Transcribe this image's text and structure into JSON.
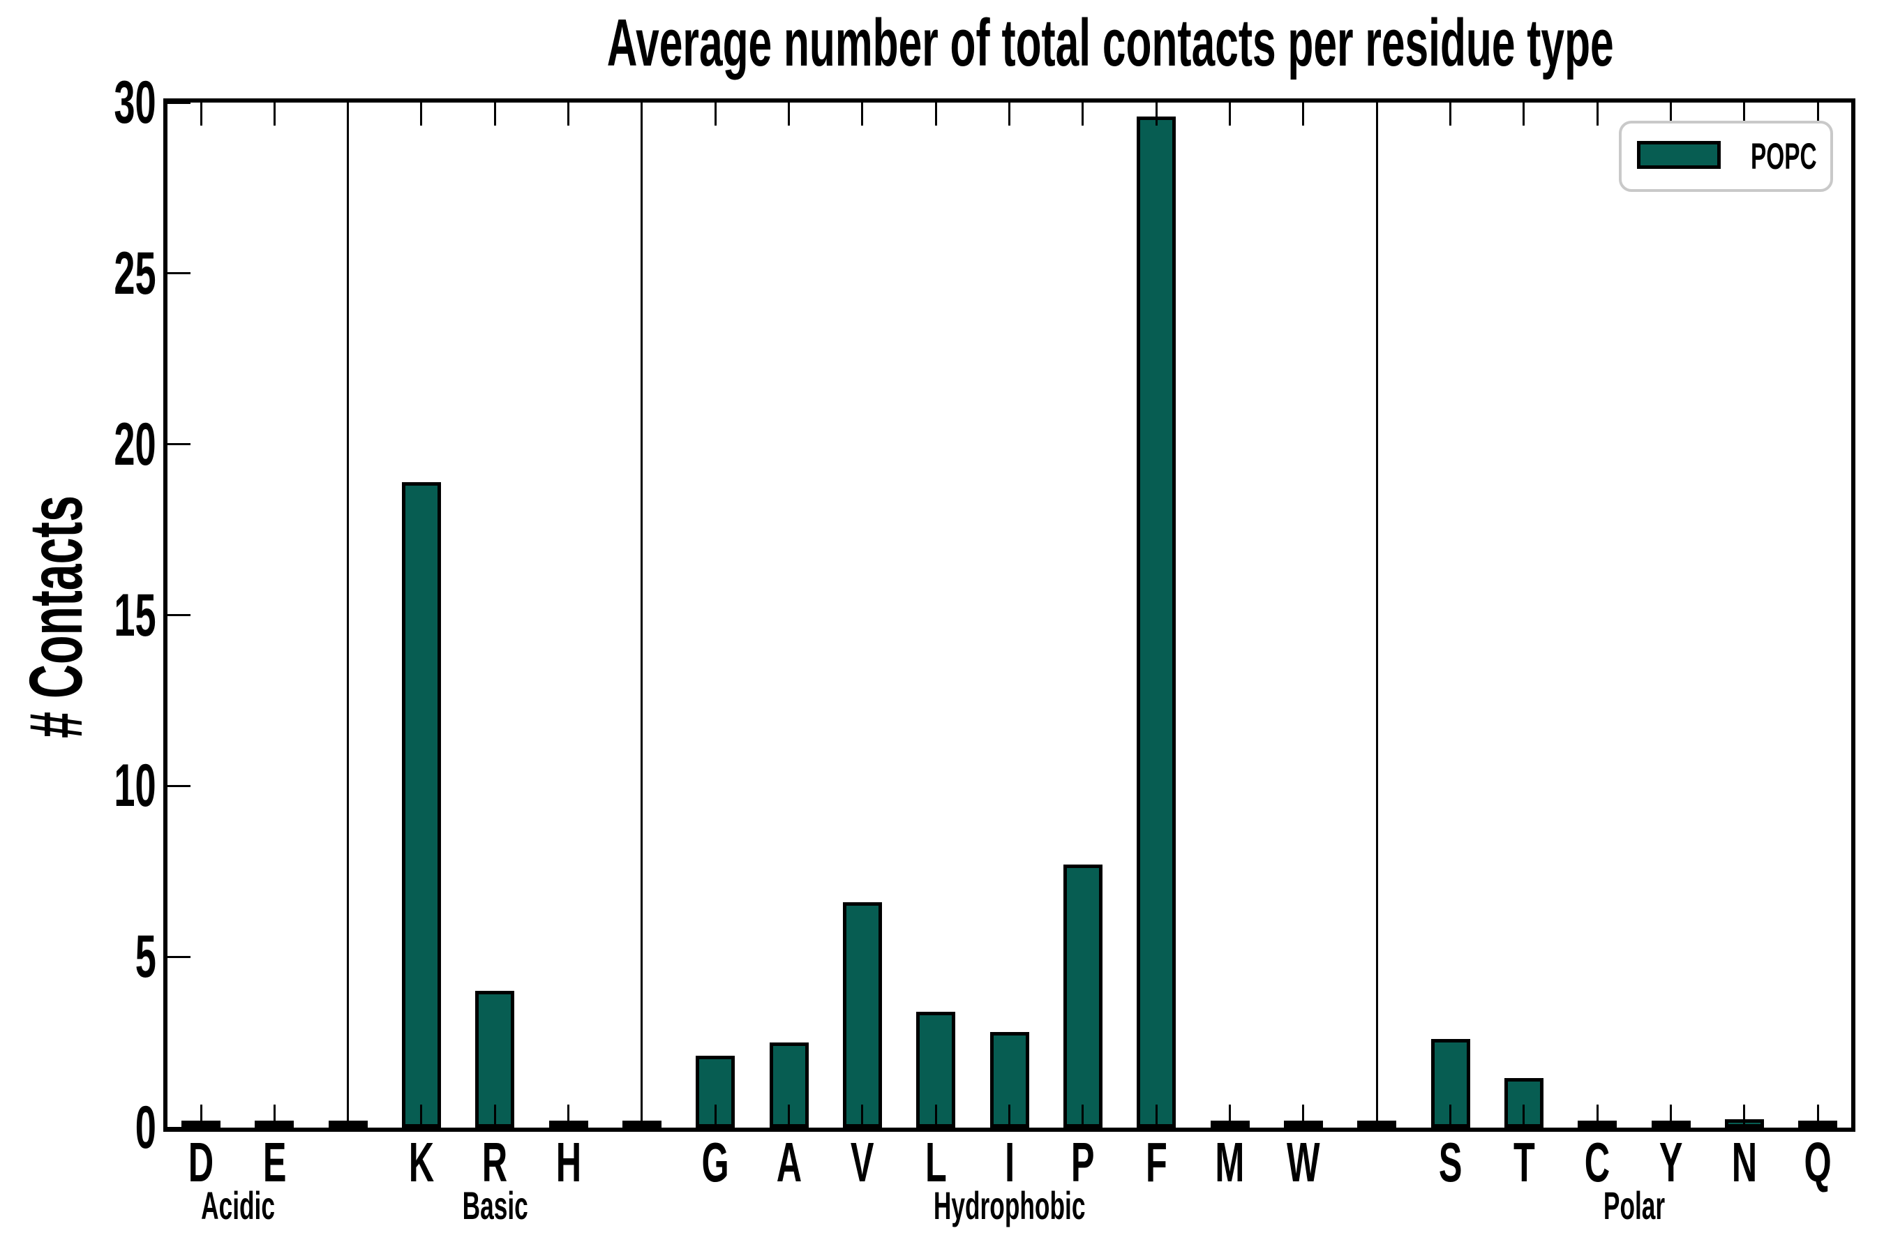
{
  "title": "Average number of total contacts per residue type",
  "y_axis_label": "# Contacts",
  "legend": {
    "entries": [
      {
        "name": "POPC",
        "color": "#075d52"
      }
    ],
    "position": "upper right"
  },
  "colors": {
    "bar_fill": "#075d52",
    "bar_edge": "#000000",
    "axis": "#000000",
    "legend_border": "#c9c9c9",
    "background": "#ffffff"
  },
  "chart_data": {
    "type": "bar",
    "title": "Average number of total contacts per residue type",
    "xlabel": "",
    "ylabel": "# Contacts",
    "ylim": [
      0,
      30
    ],
    "yticks": [
      "0",
      "5",
      "10",
      "15",
      "20",
      "25",
      "30"
    ],
    "grid": false,
    "legend_entries": [
      {
        "name": "POPC",
        "color": "#075d52"
      }
    ],
    "legend_position": "upper right",
    "groups": [
      {
        "name": "Acidic",
        "categories": [
          "D",
          "E"
        ],
        "values": [
          0.05,
          0.05
        ]
      },
      {
        "name": "Basic",
        "categories": [
          "K",
          "R",
          "H"
        ],
        "values": [
          18.9,
          4.0,
          0.05
        ]
      },
      {
        "name": "Hydrophobic",
        "categories": [
          "G",
          "A",
          "V",
          "L",
          "I",
          "P",
          "F",
          "M",
          "W"
        ],
        "values": [
          2.1,
          2.5,
          6.6,
          3.4,
          2.8,
          7.7,
          29.6,
          0.05,
          0.05
        ]
      },
      {
        "name": "Polar",
        "categories": [
          "S",
          "T",
          "C",
          "Y",
          "N",
          "Q"
        ],
        "values": [
          2.6,
          1.45,
          0.05,
          0.05,
          0.25,
          0.05
        ]
      }
    ],
    "categories": [
      "D",
      "E",
      "K",
      "R",
      "H",
      "G",
      "A",
      "V",
      "L",
      "I",
      "P",
      "F",
      "M",
      "W",
      "S",
      "T",
      "C",
      "Y",
      "N",
      "Q"
    ],
    "values": [
      0.05,
      0.05,
      18.9,
      4.0,
      0.05,
      2.1,
      2.5,
      6.6,
      3.4,
      2.8,
      7.7,
      29.6,
      0.05,
      0.05,
      2.6,
      1.45,
      0.05,
      0.05,
      0.25,
      0.05
    ],
    "divider_slot_value": 0.04,
    "series": [
      {
        "name": "POPC"
      }
    ]
  }
}
